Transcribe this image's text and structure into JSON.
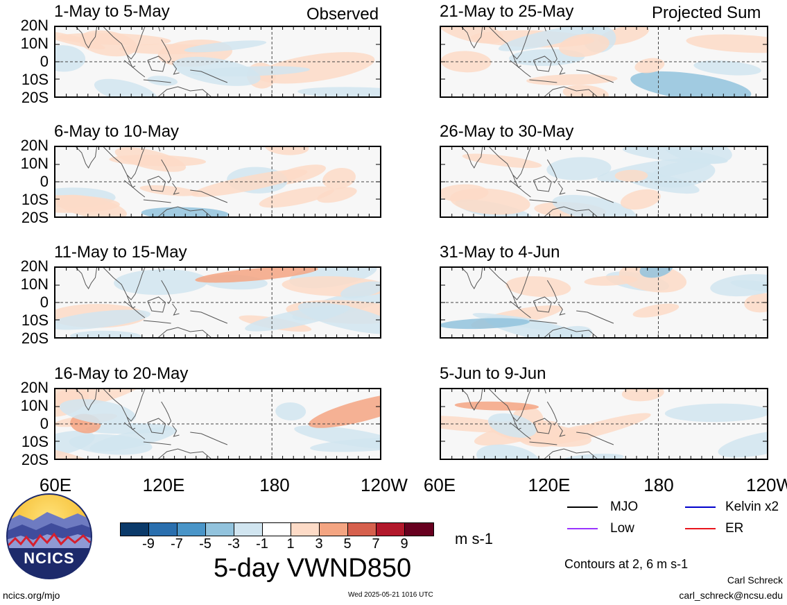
{
  "header": {
    "left": "Observed",
    "right": "Projected Sum"
  },
  "panels_left": [
    {
      "title": "1-May to 5-May"
    },
    {
      "title": "6-May to 10-May"
    },
    {
      "title": "11-May to 15-May"
    },
    {
      "title": "16-May to 20-May"
    }
  ],
  "panels_right": [
    {
      "title": "21-May to 25-May"
    },
    {
      "title": "26-May to 30-May"
    },
    {
      "title": "31-May to 4-Jun"
    },
    {
      "title": "5-Jun to 9-Jun"
    }
  ],
  "lat_labels": [
    "20N",
    "10N",
    "0",
    "10S",
    "20S"
  ],
  "lon_labels": [
    "60E",
    "120E",
    "180",
    "120W"
  ],
  "colorbar": {
    "colors": [
      "#0b3a6a",
      "#2a6fae",
      "#4a95c8",
      "#92c3dd",
      "#d1e5f0",
      "#ffffff",
      "#fddbc7",
      "#f4a582",
      "#d6604d",
      "#b2182b",
      "#67001f"
    ],
    "ticks": [
      "-9",
      "-7",
      "-5",
      "-3",
      "-1",
      "1",
      "3",
      "5",
      "7",
      "9"
    ],
    "units": "m s-1"
  },
  "main_title": "5-day VWND850",
  "legend": {
    "items": [
      {
        "label": "MJO",
        "color": "#000000"
      },
      {
        "label": "Kelvin x2",
        "color": "#0000cc"
      },
      {
        "label": "Low",
        "color": "#9933ff"
      },
      {
        "label": "ER",
        "color": "#e8141c"
      }
    ],
    "note": "Contours at 2, 6 m s-1"
  },
  "logo": {
    "text": "NCICS"
  },
  "footer": {
    "url": "ncics.org/mjo",
    "timestamp": "Wed 2025-05-21 1016 UTC",
    "author": "Carl Schreck",
    "email": "carl_schreck@ncsu.edu"
  }
}
